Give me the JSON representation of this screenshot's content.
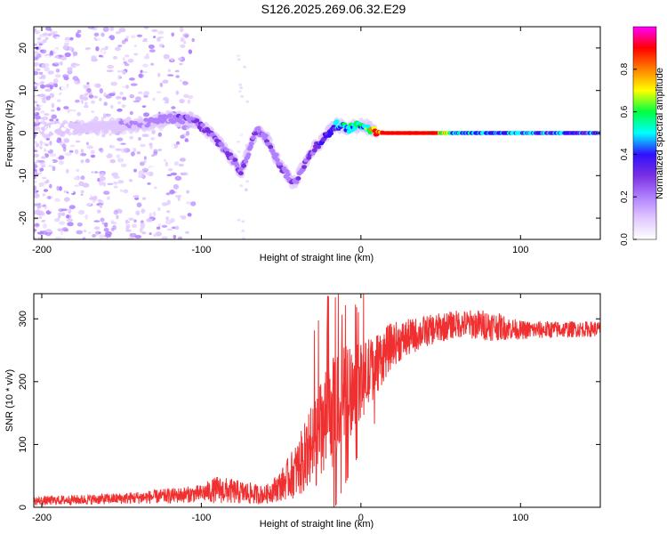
{
  "page_title": "S126.2025.269.06.32.E29",
  "colors": {
    "snr_line": "#f03030",
    "spectrum_colormap": [
      "#ffffff",
      "#e0c8ff",
      "#b080ff",
      "#7a30e0",
      "#3010ff",
      "#00ffff",
      "#00ff40",
      "#ffff00",
      "#ff8000",
      "#ff0000",
      "#ff00ff"
    ]
  },
  "chart_data": [
    {
      "type": "heatmap",
      "title": "S126.2025.269.06.32.E29",
      "xlabel": "Height of straight line (km)",
      "ylabel": "Frequency (Hz)",
      "xlim": [
        -205,
        150
      ],
      "ylim": [
        -25,
        25
      ],
      "xticks": [
        -200,
        -100,
        0,
        100
      ],
      "yticks": [
        -20,
        -10,
        0,
        10,
        20
      ],
      "colorbar": {
        "label": "Normalized spectral amplitude",
        "range": [
          0,
          1
        ],
        "ticks": [
          "0.0",
          "0.2",
          "0.4",
          "0.6",
          "0.8"
        ]
      },
      "ridge": [
        {
          "x": -200,
          "f": 1,
          "a": 0.1
        },
        {
          "x": -180,
          "f": 1,
          "a": 0.12
        },
        {
          "x": -160,
          "f": 1.5,
          "a": 0.16
        },
        {
          "x": -140,
          "f": 2,
          "a": 0.22
        },
        {
          "x": -120,
          "f": 3.5,
          "a": 0.25
        },
        {
          "x": -105,
          "f": 3,
          "a": 0.3
        },
        {
          "x": -95,
          "f": 0,
          "a": 0.32
        },
        {
          "x": -85,
          "f": -4,
          "a": 0.3
        },
        {
          "x": -75,
          "f": -9,
          "a": 0.28
        },
        {
          "x": -65,
          "f": 1,
          "a": 0.3
        },
        {
          "x": -58,
          "f": -2,
          "a": 0.3
        },
        {
          "x": -50,
          "f": -8,
          "a": 0.3
        },
        {
          "x": -42,
          "f": -12,
          "a": 0.28
        },
        {
          "x": -35,
          "f": -7,
          "a": 0.3
        },
        {
          "x": -28,
          "f": -3,
          "a": 0.35
        },
        {
          "x": -20,
          "f": 0,
          "a": 0.4
        },
        {
          "x": -15,
          "f": 2,
          "a": 0.5
        },
        {
          "x": -8,
          "f": 1,
          "a": 0.55
        },
        {
          "x": 0,
          "f": 2,
          "a": 0.6
        },
        {
          "x": 8,
          "f": 0.5,
          "a": 0.75
        },
        {
          "x": 15,
          "f": 0,
          "a": 0.98
        },
        {
          "x": 45,
          "f": 0,
          "a": 0.9
        },
        {
          "x": 60,
          "f": 0,
          "a": 0.55
        },
        {
          "x": 100,
          "f": 0,
          "a": 0.5
        },
        {
          "x": 150,
          "f": 0,
          "a": 0.45
        }
      ]
    },
    {
      "type": "line",
      "xlabel": "Height of straight line (km)",
      "ylabel": "SNR (10 * v/v)",
      "xlim": [
        -205,
        150
      ],
      "ylim": [
        0,
        340
      ],
      "xticks": [
        -200,
        -100,
        0,
        100
      ],
      "yticks": [
        0,
        100,
        200,
        300
      ],
      "series": [
        {
          "name": "SNR",
          "envelope": [
            {
              "x": -205,
              "mean": 10,
              "spread": 7
            },
            {
              "x": -150,
              "mean": 14,
              "spread": 9
            },
            {
              "x": -120,
              "mean": 18,
              "spread": 12
            },
            {
              "x": -100,
              "mean": 22,
              "spread": 14
            },
            {
              "x": -90,
              "mean": 28,
              "spread": 22
            },
            {
              "x": -80,
              "mean": 25,
              "spread": 20
            },
            {
              "x": -70,
              "mean": 22,
              "spread": 18
            },
            {
              "x": -60,
              "mean": 20,
              "spread": 14
            },
            {
              "x": -50,
              "mean": 35,
              "spread": 25
            },
            {
              "x": -40,
              "mean": 60,
              "spread": 45
            },
            {
              "x": -30,
              "mean": 100,
              "spread": 70
            },
            {
              "x": -20,
              "mean": 140,
              "spread": 90
            },
            {
              "x": -10,
              "mean": 180,
              "spread": 80
            },
            {
              "x": 0,
              "mean": 200,
              "spread": 60
            },
            {
              "x": 10,
              "mean": 230,
              "spread": 50
            },
            {
              "x": 20,
              "mean": 260,
              "spread": 35
            },
            {
              "x": 40,
              "mean": 280,
              "spread": 25
            },
            {
              "x": 60,
              "mean": 292,
              "spread": 22
            },
            {
              "x": 80,
              "mean": 290,
              "spread": 25
            },
            {
              "x": 100,
              "mean": 282,
              "spread": 15
            },
            {
              "x": 150,
              "mean": 284,
              "spread": 12
            }
          ]
        }
      ]
    }
  ]
}
